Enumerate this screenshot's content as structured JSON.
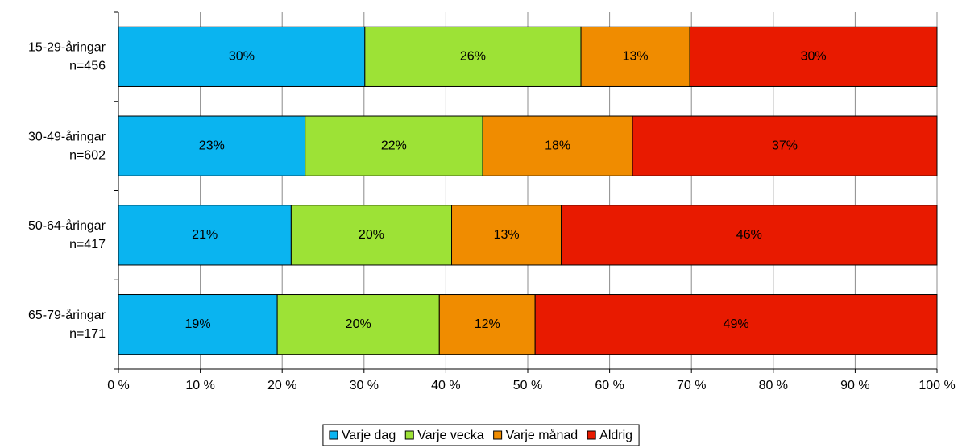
{
  "chart_data": {
    "type": "stacked-bar-horizontal",
    "categories": [
      [
        "15-29-åringar",
        "n=456"
      ],
      [
        "30-49-åringar",
        "n=602"
      ],
      [
        "50-64-åringar",
        "n=417"
      ],
      [
        "65-79-åringar",
        "n=171"
      ]
    ],
    "series": [
      {
        "name": "Varje dag",
        "color": "#0ab4f0",
        "values": [
          30.1,
          22.8,
          21.1,
          19.4
        ],
        "value_labels": [
          "30%",
          "23%",
          "21%",
          "19%"
        ]
      },
      {
        "name": "Varje vecka",
        "color": "#9de236",
        "values": [
          26.4,
          21.7,
          19.6,
          19.8
        ],
        "value_labels": [
          "26%",
          "22%",
          "20%",
          "20%"
        ]
      },
      {
        "name": "Varje månad",
        "color": "#f08c00",
        "values": [
          13.3,
          18.3,
          13.4,
          11.7
        ],
        "value_labels": [
          "13%",
          "18%",
          "13%",
          "12%"
        ]
      },
      {
        "name": "Aldrig",
        "color": "#e81a00",
        "values": [
          30.2,
          37.2,
          45.9,
          49.1
        ],
        "value_labels": [
          "30%",
          "37%",
          "46%",
          "49%"
        ]
      }
    ],
    "xlim": [
      0,
      100
    ],
    "xticks": [
      {
        "value": 0,
        "label": "0 %"
      },
      {
        "value": 10,
        "label": "10 %"
      },
      {
        "value": 20,
        "label": "20 %"
      },
      {
        "value": 30,
        "label": "30 %"
      },
      {
        "value": 40,
        "label": "40 %"
      },
      {
        "value": 50,
        "label": "50 %"
      },
      {
        "value": 60,
        "label": "60 %"
      },
      {
        "value": 70,
        "label": "70 %"
      },
      {
        "value": 80,
        "label": "80 %"
      },
      {
        "value": 90,
        "label": "90 %"
      },
      {
        "value": 100,
        "label": "100 %"
      }
    ],
    "grid": true,
    "legend": "bottom"
  }
}
